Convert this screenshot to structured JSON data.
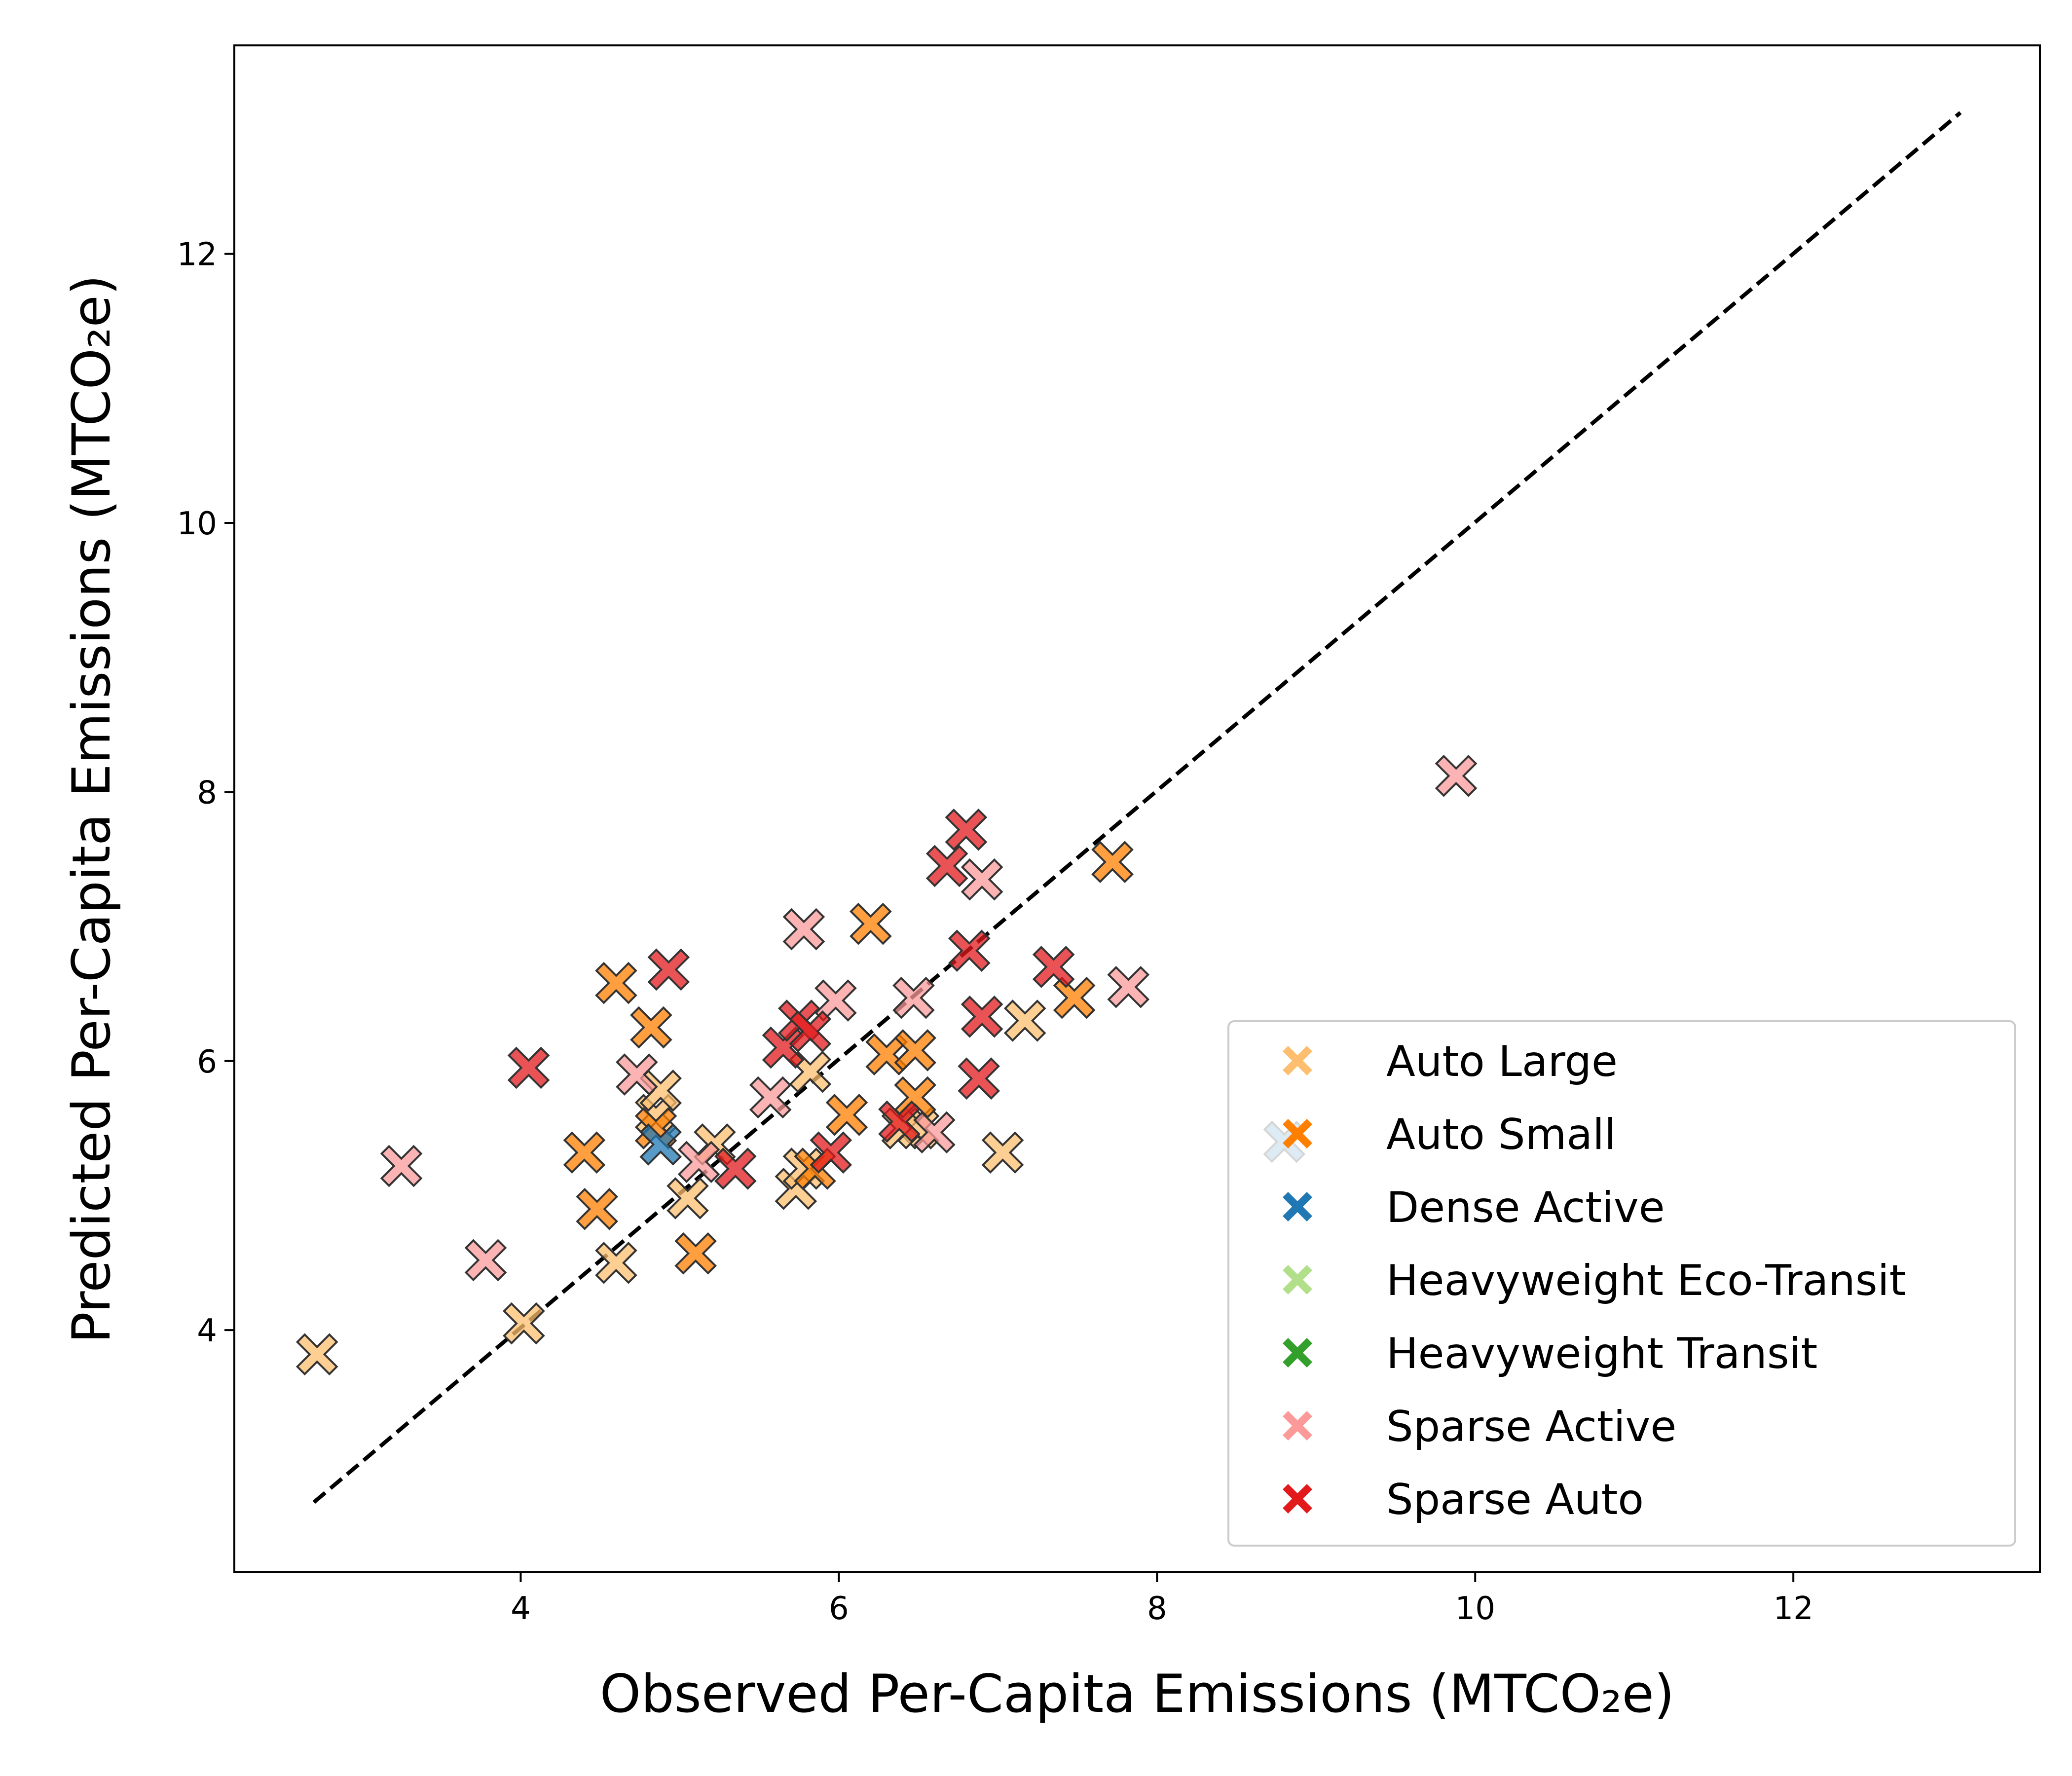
{
  "chart_data": {
    "type": "scatter",
    "title": "",
    "xlabel": "Observed Per-Capita Emissions (MTCO₂e)",
    "ylabel": "Predicted Per-Capita Emissions (MTCO₂e)",
    "xlim": [
      2.2,
      13.55
    ],
    "ylim": [
      2.2,
      13.55
    ],
    "xticks": [
      4,
      6,
      8,
      10,
      12
    ],
    "yticks": [
      4,
      6,
      8,
      10,
      12
    ],
    "marker": "X",
    "legend_position": "lower right",
    "reference_line": {
      "style": "dashed",
      "color": "#000000",
      "from": [
        2.7,
        2.72
      ],
      "to": [
        13.05,
        13.05
      ]
    },
    "series": [
      {
        "name": "Auto Large",
        "color": "#fdbf6f",
        "points": [
          [
            2.72,
            3.82
          ],
          [
            4.02,
            4.05
          ],
          [
            4.6,
            4.5
          ],
          [
            4.85,
            5.6
          ],
          [
            4.88,
            5.78
          ],
          [
            5.05,
            4.98
          ],
          [
            5.22,
            5.38
          ],
          [
            5.73,
            5.05
          ],
          [
            5.78,
            5.2
          ],
          [
            5.82,
            5.92
          ],
          [
            6.4,
            5.5
          ],
          [
            6.5,
            5.5
          ],
          [
            7.03,
            5.32
          ],
          [
            7.17,
            6.3
          ]
        ]
      },
      {
        "name": "Auto Small",
        "color": "#ff7f00",
        "points": [
          [
            4.4,
            5.32
          ],
          [
            4.48,
            4.9
          ],
          [
            4.6,
            6.58
          ],
          [
            4.82,
            6.25
          ],
          [
            4.85,
            5.5
          ],
          [
            5.1,
            4.57
          ],
          [
            5.85,
            5.2
          ],
          [
            6.05,
            5.6
          ],
          [
            6.2,
            7.02
          ],
          [
            6.3,
            6.05
          ],
          [
            6.48,
            6.08
          ],
          [
            6.48,
            5.73
          ],
          [
            7.48,
            6.47
          ],
          [
            7.72,
            7.48
          ]
        ]
      },
      {
        "name": "Dense Active",
        "color": "#1f78b4",
        "points": [
          [
            4.88,
            5.38
          ],
          [
            8.8,
            5.4
          ]
        ]
      },
      {
        "name": "Heavyweight Eco-Transit",
        "color": "#b2df8a",
        "points": []
      },
      {
        "name": "Heavyweight Transit",
        "color": "#33a02c",
        "points": []
      },
      {
        "name": "Sparse Active",
        "color": "#fb9a99",
        "points": [
          [
            3.25,
            5.22
          ],
          [
            3.78,
            4.52
          ],
          [
            4.73,
            5.9
          ],
          [
            5.12,
            5.25
          ],
          [
            5.57,
            5.73
          ],
          [
            5.78,
            6.98
          ],
          [
            5.98,
            6.45
          ],
          [
            6.47,
            6.47
          ],
          [
            6.6,
            5.47
          ],
          [
            6.9,
            7.35
          ],
          [
            7.82,
            6.55
          ],
          [
            9.88,
            8.12
          ]
        ]
      },
      {
        "name": "Sparse Auto",
        "color": "#e31a1c",
        "points": [
          [
            4.05,
            5.95
          ],
          [
            4.93,
            6.68
          ],
          [
            5.35,
            5.2
          ],
          [
            5.65,
            6.1
          ],
          [
            5.75,
            6.3
          ],
          [
            5.82,
            6.22
          ],
          [
            5.95,
            5.32
          ],
          [
            6.38,
            5.55
          ],
          [
            6.68,
            7.45
          ],
          [
            6.8,
            7.72
          ],
          [
            6.82,
            6.82
          ],
          [
            6.88,
            5.87
          ],
          [
            6.9,
            6.33
          ],
          [
            7.35,
            6.7
          ]
        ]
      }
    ]
  }
}
